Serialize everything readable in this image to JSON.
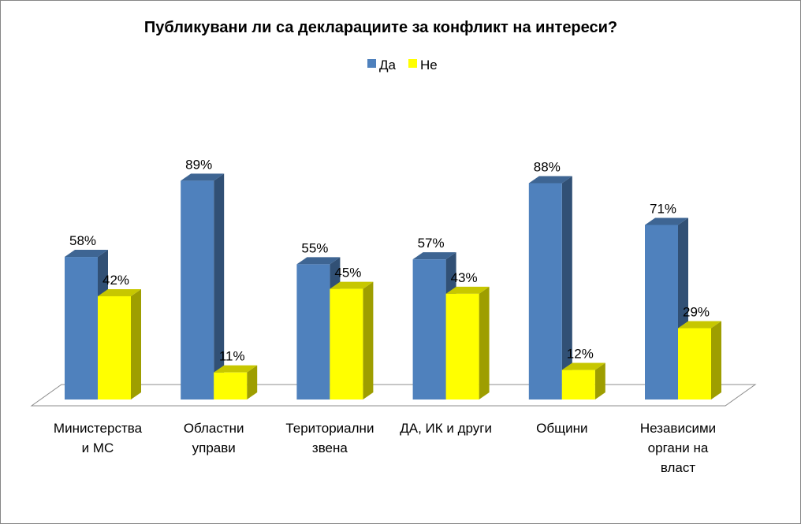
{
  "chart_data": {
    "type": "bar",
    "title": "Публикувани ли са декларациите за конфликт на интереси?",
    "xlabel": "",
    "ylabel": "",
    "ylim": [
      0,
      100
    ],
    "grid": false,
    "legend_position": "top-center",
    "categories": [
      [
        "Министерства",
        "и МС"
      ],
      [
        "Областни",
        "управи"
      ],
      [
        "Териториални",
        "звена"
      ],
      [
        "ДА, ИК и други"
      ],
      [
        "Общини"
      ],
      [
        "Независими",
        "органи на",
        "власт"
      ]
    ],
    "series": [
      {
        "name": "Да",
        "values": [
          58,
          89,
          55,
          57,
          88,
          71
        ],
        "labels": [
          "58%",
          "89%",
          "55%",
          "57%",
          "88%",
          "71%"
        ],
        "color": "#4F81BD"
      },
      {
        "name": "Не",
        "values": [
          42,
          11,
          45,
          43,
          12,
          29
        ],
        "labels": [
          "42%",
          "11%",
          "45%",
          "43%",
          "12%",
          "29%"
        ],
        "color": "#FFFF00"
      }
    ]
  }
}
